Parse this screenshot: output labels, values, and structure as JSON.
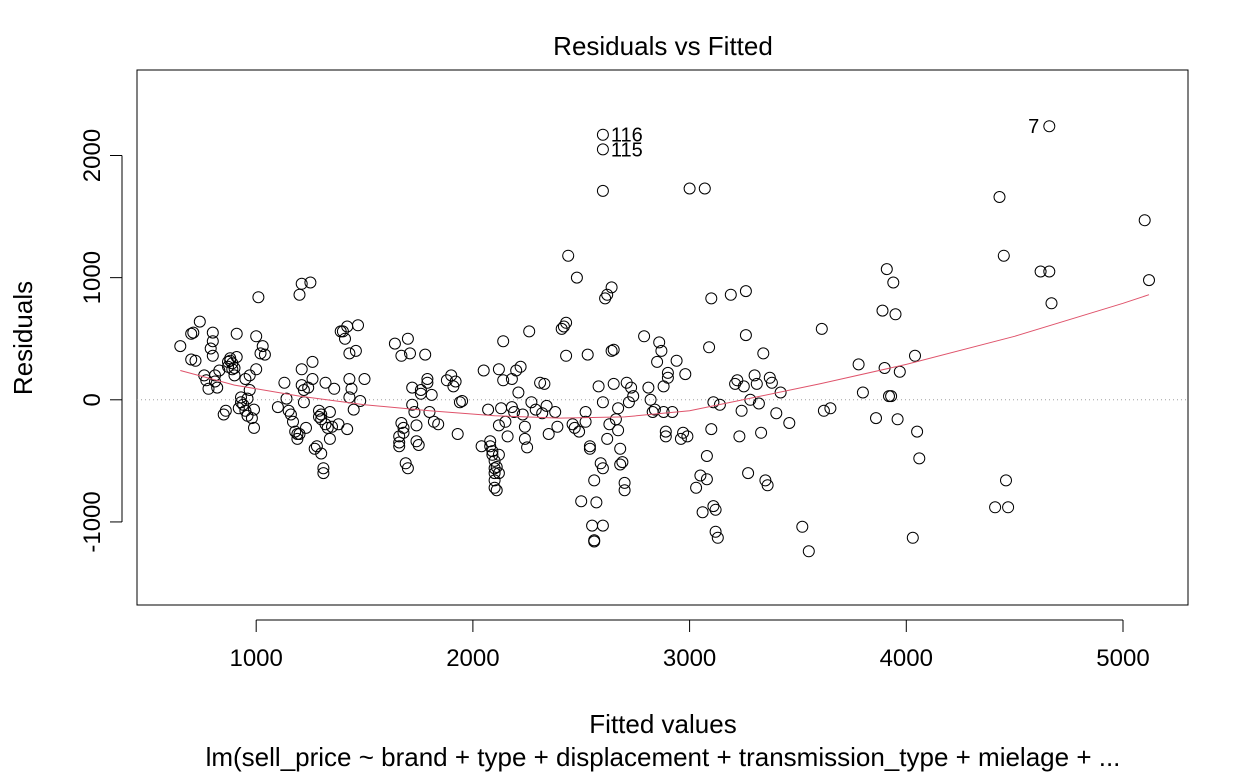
{
  "chart_data": {
    "type": "scatter",
    "title": "Residuals vs Fitted",
    "xlabel": "Fitted values",
    "ylabel": "Residuals",
    "subtitle": "lm(sell_price ~ brand + type + displacement + transmission_type + mielage + ...",
    "xlim": [
      450,
      5300
    ],
    "ylim": [
      -1680,
      2700
    ],
    "x_ticks": [
      1000,
      2000,
      3000,
      4000,
      5000
    ],
    "x_tick_labels": [
      "1000",
      "2000",
      "3000",
      "4000",
      "5000"
    ],
    "y_ticks": [
      -1000,
      0,
      1000,
      2000
    ],
    "y_tick_labels": [
      "-1000",
      "0",
      "1000",
      "2000"
    ],
    "reference_line_y": 0,
    "grid": false,
    "legend": "none",
    "colors": {
      "points": "#000000",
      "smoother": "#df536b",
      "reference": "#a0a0a0"
    },
    "point_labels": [
      {
        "text": "116",
        "x": 2600,
        "y": 2170
      },
      {
        "text": "115",
        "x": 2600,
        "y": 2050
      },
      {
        "text": "7",
        "x": 4660,
        "y": 2240
      }
    ],
    "smoother": [
      [
        650,
        240
      ],
      [
        900,
        120
      ],
      [
        1200,
        30
      ],
      [
        1500,
        -40
      ],
      [
        1800,
        -90
      ],
      [
        2100,
        -130
      ],
      [
        2400,
        -150
      ],
      [
        2700,
        -140
      ],
      [
        3000,
        -90
      ],
      [
        3300,
        20
      ],
      [
        3600,
        130
      ],
      [
        4000,
        290
      ],
      [
        4500,
        520
      ],
      [
        5000,
        790
      ],
      [
        5120,
        860
      ]
    ],
    "points": [
      [
        650,
        440
      ],
      [
        700,
        330
      ],
      [
        700,
        540
      ],
      [
        710,
        550
      ],
      [
        720,
        320
      ],
      [
        740,
        640
      ],
      [
        760,
        200
      ],
      [
        770,
        160
      ],
      [
        780,
        90
      ],
      [
        790,
        420
      ],
      [
        800,
        480
      ],
      [
        800,
        550
      ],
      [
        800,
        360
      ],
      [
        810,
        200
      ],
      [
        810,
        150
      ],
      [
        820,
        100
      ],
      [
        830,
        240
      ],
      [
        850,
        -120
      ],
      [
        860,
        -90
      ],
      [
        870,
        270
      ],
      [
        870,
        310
      ],
      [
        880,
        320
      ],
      [
        880,
        340
      ],
      [
        890,
        300
      ],
      [
        890,
        250
      ],
      [
        900,
        260
      ],
      [
        900,
        200
      ],
      [
        910,
        540
      ],
      [
        910,
        350
      ],
      [
        920,
        -70
      ],
      [
        930,
        -20
      ],
      [
        930,
        20
      ],
      [
        940,
        -40
      ],
      [
        950,
        -90
      ],
      [
        950,
        170
      ],
      [
        960,
        10
      ],
      [
        960,
        -130
      ],
      [
        970,
        80
      ],
      [
        970,
        200
      ],
      [
        980,
        -150
      ],
      [
        990,
        -230
      ],
      [
        990,
        -80
      ],
      [
        1000,
        520
      ],
      [
        1000,
        250
      ],
      [
        1010,
        840
      ],
      [
        1020,
        380
      ],
      [
        1030,
        440
      ],
      [
        1040,
        370
      ],
      [
        1100,
        -60
      ],
      [
        1130,
        140
      ],
      [
        1140,
        10
      ],
      [
        1150,
        -90
      ],
      [
        1160,
        -120
      ],
      [
        1170,
        -180
      ],
      [
        1180,
        -260
      ],
      [
        1190,
        -280
      ],
      [
        1190,
        -320
      ],
      [
        1200,
        -280
      ],
      [
        1200,
        860
      ],
      [
        1210,
        950
      ],
      [
        1210,
        250
      ],
      [
        1210,
        120
      ],
      [
        1220,
        -20
      ],
      [
        1220,
        80
      ],
      [
        1230,
        -230
      ],
      [
        1240,
        100
      ],
      [
        1250,
        960
      ],
      [
        1260,
        170
      ],
      [
        1260,
        310
      ],
      [
        1270,
        -400
      ],
      [
        1280,
        -380
      ],
      [
        1290,
        -90
      ],
      [
        1290,
        -140
      ],
      [
        1300,
        -120
      ],
      [
        1300,
        -160
      ],
      [
        1300,
        -440
      ],
      [
        1310,
        -560
      ],
      [
        1310,
        -600
      ],
      [
        1320,
        -200
      ],
      [
        1320,
        140
      ],
      [
        1330,
        -230
      ],
      [
        1340,
        -320
      ],
      [
        1340,
        -100
      ],
      [
        1350,
        -220
      ],
      [
        1360,
        90
      ],
      [
        1380,
        -200
      ],
      [
        1390,
        560
      ],
      [
        1400,
        560
      ],
      [
        1410,
        500
      ],
      [
        1420,
        600
      ],
      [
        1420,
        -240
      ],
      [
        1430,
        20
      ],
      [
        1430,
        380
      ],
      [
        1430,
        170
      ],
      [
        1440,
        90
      ],
      [
        1450,
        -80
      ],
      [
        1460,
        400
      ],
      [
        1470,
        610
      ],
      [
        1480,
        -10
      ],
      [
        1500,
        170
      ],
      [
        1640,
        460
      ],
      [
        1660,
        -300
      ],
      [
        1660,
        -350
      ],
      [
        1660,
        -380
      ],
      [
        1670,
        360
      ],
      [
        1670,
        -190
      ],
      [
        1680,
        -230
      ],
      [
        1680,
        -270
      ],
      [
        1690,
        -520
      ],
      [
        1700,
        -560
      ],
      [
        1700,
        500
      ],
      [
        1710,
        380
      ],
      [
        1720,
        100
      ],
      [
        1720,
        -40
      ],
      [
        1730,
        -100
      ],
      [
        1740,
        -210
      ],
      [
        1740,
        -340
      ],
      [
        1750,
        -370
      ],
      [
        1760,
        50
      ],
      [
        1760,
        80
      ],
      [
        1780,
        370
      ],
      [
        1790,
        140
      ],
      [
        1790,
        170
      ],
      [
        1800,
        -100
      ],
      [
        1810,
        40
      ],
      [
        1820,
        -180
      ],
      [
        1840,
        -200
      ],
      [
        1880,
        160
      ],
      [
        1900,
        200
      ],
      [
        1910,
        110
      ],
      [
        1920,
        150
      ],
      [
        1930,
        -280
      ],
      [
        1940,
        -20
      ],
      [
        1950,
        -10
      ],
      [
        2040,
        -380
      ],
      [
        2050,
        240
      ],
      [
        2070,
        -80
      ],
      [
        2080,
        -340
      ],
      [
        2080,
        -380
      ],
      [
        2090,
        -420
      ],
      [
        2090,
        -450
      ],
      [
        2100,
        -500
      ],
      [
        2100,
        -560
      ],
      [
        2100,
        -600
      ],
      [
        2100,
        -660
      ],
      [
        2100,
        -720
      ],
      [
        2110,
        -740
      ],
      [
        2110,
        -550
      ],
      [
        2120,
        -600
      ],
      [
        2120,
        -450
      ],
      [
        2120,
        -210
      ],
      [
        2120,
        250
      ],
      [
        2130,
        -70
      ],
      [
        2140,
        480
      ],
      [
        2140,
        160
      ],
      [
        2150,
        -180
      ],
      [
        2160,
        -300
      ],
      [
        2180,
        170
      ],
      [
        2180,
        -60
      ],
      [
        2190,
        -100
      ],
      [
        2200,
        240
      ],
      [
        2210,
        60
      ],
      [
        2220,
        270
      ],
      [
        2230,
        -120
      ],
      [
        2240,
        -220
      ],
      [
        2240,
        -320
      ],
      [
        2250,
        -390
      ],
      [
        2260,
        560
      ],
      [
        2270,
        -20
      ],
      [
        2290,
        -80
      ],
      [
        2310,
        140
      ],
      [
        2320,
        -110
      ],
      [
        2330,
        130
      ],
      [
        2340,
        -50
      ],
      [
        2350,
        -280
      ],
      [
        2380,
        -100
      ],
      [
        2390,
        -220
      ],
      [
        2410,
        580
      ],
      [
        2420,
        600
      ],
      [
        2430,
        630
      ],
      [
        2430,
        360
      ],
      [
        2440,
        1180
      ],
      [
        2460,
        -200
      ],
      [
        2470,
        -230
      ],
      [
        2480,
        1000
      ],
      [
        2490,
        -260
      ],
      [
        2500,
        -830
      ],
      [
        2520,
        -180
      ],
      [
        2520,
        -100
      ],
      [
        2530,
        370
      ],
      [
        2540,
        -400
      ],
      [
        2540,
        -380
      ],
      [
        2550,
        -1030
      ],
      [
        2560,
        -1150
      ],
      [
        2560,
        -1160
      ],
      [
        2560,
        -660
      ],
      [
        2570,
        -840
      ],
      [
        2580,
        110
      ],
      [
        2590,
        -520
      ],
      [
        2600,
        -560
      ],
      [
        2600,
        -1030
      ],
      [
        2600,
        -20
      ],
      [
        2610,
        830
      ],
      [
        2620,
        860
      ],
      [
        2620,
        -320
      ],
      [
        2630,
        -200
      ],
      [
        2640,
        920
      ],
      [
        2640,
        400
      ],
      [
        2650,
        410
      ],
      [
        2650,
        130
      ],
      [
        2660,
        -160
      ],
      [
        2670,
        -250
      ],
      [
        2670,
        -70
      ],
      [
        2680,
        -400
      ],
      [
        2680,
        -530
      ],
      [
        2690,
        -510
      ],
      [
        2700,
        -680
      ],
      [
        2700,
        -740
      ],
      [
        2710,
        140
      ],
      [
        2720,
        -20
      ],
      [
        2730,
        100
      ],
      [
        2740,
        30
      ],
      [
        2790,
        520
      ],
      [
        2810,
        100
      ],
      [
        2820,
        0
      ],
      [
        2830,
        -100
      ],
      [
        2840,
        -80
      ],
      [
        2850,
        310
      ],
      [
        2860,
        470
      ],
      [
        2870,
        400
      ],
      [
        2880,
        110
      ],
      [
        2880,
        -100
      ],
      [
        2890,
        -260
      ],
      [
        2890,
        -300
      ],
      [
        2900,
        180
      ],
      [
        2900,
        220
      ],
      [
        2920,
        -100
      ],
      [
        2940,
        320
      ],
      [
        2960,
        -320
      ],
      [
        2970,
        -270
      ],
      [
        2980,
        210
      ],
      [
        2990,
        -300
      ],
      [
        3030,
        -720
      ],
      [
        3050,
        -620
      ],
      [
        3060,
        -920
      ],
      [
        3070,
        1730
      ],
      [
        3080,
        -650
      ],
      [
        3080,
        -460
      ],
      [
        3090,
        430
      ],
      [
        3100,
        830
      ],
      [
        3100,
        -240
      ],
      [
        3110,
        -20
      ],
      [
        3110,
        -870
      ],
      [
        3120,
        -900
      ],
      [
        3120,
        -1080
      ],
      [
        3130,
        -1130
      ],
      [
        3140,
        -40
      ],
      [
        3190,
        860
      ],
      [
        3210,
        130
      ],
      [
        3220,
        160
      ],
      [
        3230,
        -300
      ],
      [
        3240,
        -90
      ],
      [
        3250,
        110
      ],
      [
        3260,
        530
      ],
      [
        3260,
        890
      ],
      [
        3270,
        -600
      ],
      [
        3280,
        0
      ],
      [
        3300,
        200
      ],
      [
        3310,
        130
      ],
      [
        3320,
        -30
      ],
      [
        3330,
        -270
      ],
      [
        3340,
        380
      ],
      [
        3350,
        -660
      ],
      [
        3360,
        -700
      ],
      [
        3370,
        180
      ],
      [
        3380,
        140
      ],
      [
        3400,
        -110
      ],
      [
        3420,
        60
      ],
      [
        3460,
        -190
      ],
      [
        3520,
        -1040
      ],
      [
        3550,
        -1240
      ],
      [
        3610,
        580
      ],
      [
        3620,
        -90
      ],
      [
        3650,
        -70
      ],
      [
        3780,
        290
      ],
      [
        3800,
        60
      ],
      [
        3860,
        -150
      ],
      [
        3890,
        730
      ],
      [
        3900,
        260
      ],
      [
        3910,
        1070
      ],
      [
        3920,
        30
      ],
      [
        3930,
        30
      ],
      [
        3940,
        960
      ],
      [
        3950,
        700
      ],
      [
        3960,
        -160
      ],
      [
        3970,
        230
      ],
      [
        4030,
        -1130
      ],
      [
        4040,
        360
      ],
      [
        4050,
        -260
      ],
      [
        4060,
        -480
      ],
      [
        4410,
        -880
      ],
      [
        4430,
        1660
      ],
      [
        4450,
        1180
      ],
      [
        4460,
        -660
      ],
      [
        4470,
        -880
      ],
      [
        4620,
        1050
      ],
      [
        4660,
        1050
      ],
      [
        4660,
        2240
      ],
      [
        4670,
        790
      ],
      [
        5100,
        1470
      ],
      [
        5120,
        980
      ],
      [
        2600,
        2170
      ],
      [
        2600,
        2050
      ],
      [
        2600,
        1710
      ],
      [
        3000,
        1730
      ]
    ]
  }
}
